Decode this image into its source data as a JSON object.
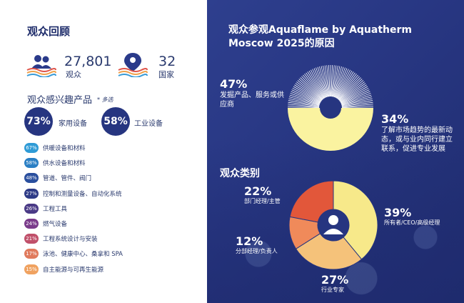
{
  "left": {
    "title": "观众回顾",
    "visitors": {
      "value": "27,801",
      "label": "观众",
      "icon": "people-icon"
    },
    "countries": {
      "value": "32",
      "label": "国家",
      "icon": "location-pin-icon"
    },
    "interest_title": "观众感兴趣产品",
    "interest_note": "* 多选",
    "top_interests": [
      {
        "pct": "73%",
        "label": "家用设备"
      },
      {
        "pct": "58%",
        "label": "工业设备"
      }
    ],
    "products": [
      {
        "pct": "67%",
        "label": "供暖设备和材料",
        "color": "#2f9bd6"
      },
      {
        "pct": "58%",
        "label": "供水设备和材料",
        "color": "#2a7fc4"
      },
      {
        "pct": "48%",
        "label": "管道、管件、阀门",
        "color": "#2a4f9e"
      },
      {
        "pct": "27%",
        "label": "控制和测量设备、自动化系统",
        "color": "#2d3a86"
      },
      {
        "pct": "26%",
        "label": "工程工具",
        "color": "#4a3a86"
      },
      {
        "pct": "24%",
        "label": "燃气设备",
        "color": "#7a3a8a"
      },
      {
        "pct": "21%",
        "label": "工程系统设计与安装",
        "color": "#c0506a"
      },
      {
        "pct": "17%",
        "label": "泳池、健康中心、桑拿和 SPA",
        "color": "#e07a5c"
      },
      {
        "pct": "15%",
        "label": "自主能源与可再生能源",
        "color": "#f0a260"
      }
    ]
  },
  "right": {
    "title_line1": "观众参观Aquaflame by Aquatherm",
    "title_line2": "Moscow 2025的原因",
    "reasons": [
      {
        "pct": "47%",
        "label": "发掘产品、服务或供应商"
      },
      {
        "pct": "34%",
        "label": "了解市场趋势的最新动态，或与业内同行建立联系，促进专业发展"
      }
    ],
    "categories_title": "观众类别",
    "categories": [
      {
        "pct": "39%",
        "label": "所有者/CEO/高级经理",
        "color": "#f7e98a"
      },
      {
        "pct": "27%",
        "label": "行业专家",
        "color": "#f5c27a"
      },
      {
        "pct": "12%",
        "label": "分部经理/负责人",
        "color": "#f08a5a"
      },
      {
        "pct": "22%",
        "label": "部门经理/主管",
        "color": "#e2573a"
      }
    ],
    "colors": {
      "reason_fill": "#faf3a0",
      "navy": "#263580"
    }
  }
}
